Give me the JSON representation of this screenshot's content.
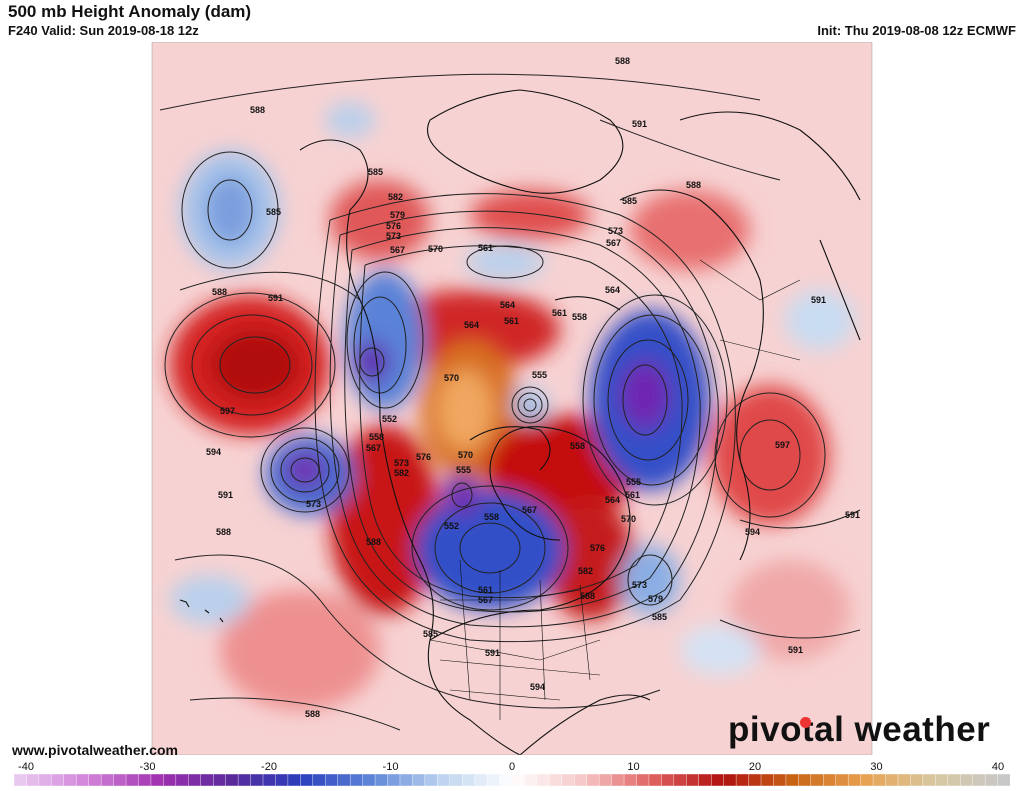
{
  "header": {
    "title": "500 mb Height Anomaly (dam)",
    "valid": "F240 Valid: Sun 2019-08-18 12z",
    "init": "Init: Thu 2019-08-08 12z ECMWF"
  },
  "footer": {
    "site": "www.pivotalweather.com",
    "brand_left": "pivot",
    "brand_right": "al weather"
  },
  "colorbar": {
    "ticks": [
      "-40",
      "-30",
      "-20",
      "-10",
      "0",
      "10",
      "20",
      "30",
      "40"
    ],
    "min": -40,
    "max": 40,
    "stops": [
      "#e9c8f0",
      "#d080d8",
      "#a030b0",
      "#5a2a9a",
      "#2a3fbf",
      "#5f86d8",
      "#bcd3ef",
      "#ffffff",
      "#f6c8c8",
      "#e06060",
      "#b01010",
      "#c86414",
      "#e8a050",
      "#d8c8a0",
      "#c8c8c8"
    ]
  },
  "map": {
    "colors": {
      "ocean": "#ffffff",
      "land_pos": "#f4c4c4",
      "neg": "#b9d0ec",
      "strong_pos": "#c81414",
      "peak": "#e0882a",
      "strong_neg": "#2a44c4",
      "core_neg": "#7028b0",
      "line": "#111111"
    },
    "contour_labels": [
      "588",
      "591",
      "585",
      "582",
      "579",
      "576",
      "573",
      "570",
      "567",
      "564",
      "561",
      "558",
      "555",
      "552",
      "594",
      "597"
    ]
  }
}
